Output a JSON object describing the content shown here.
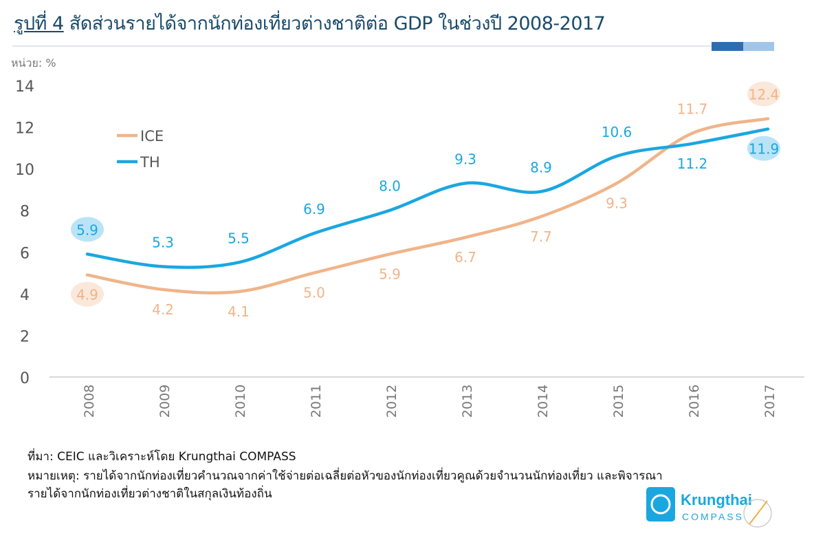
{
  "title_prefix": "รูปที่ 4",
  "title_text": "สัดส่วนรายได้จากนักท่องเที่ยวต่างชาติต่อ GDP ในช่วงปี 2008-2017",
  "unit_label": "หน่วย: %",
  "source": "ที่มา: CEIC และวิเคราะห์โดย Krungthai COMPASS",
  "note_line1": "หมายเหตุ: รายได้จากนักท่องเที่ยวคำนวณจากค่าใช้จ่ายต่อเฉลี่ยต่อหัวของนักท่องเที่ยวคูณด้วยจำนวนนักท่องเที่ยว และพิจารณา",
  "note_line2": "รายได้จากนักท่องเที่ยวต่างชาติในสกุลเงินท้องถิ่น",
  "logo": {
    "name": "Krungthai",
    "sub": "COMPASS"
  },
  "chart_data": {
    "type": "line",
    "title": "สัดส่วนรายได้จากนักท่องเที่ยวต่างชาติต่อ GDP ในช่วงปี 2008-2017",
    "xlabel": "",
    "ylabel": "หน่วย: %",
    "ylim": [
      0,
      14
    ],
    "yticks": [
      0,
      2,
      4,
      6,
      8,
      10,
      12,
      14
    ],
    "grid": false,
    "legend_position": "top-left",
    "categories": [
      "2008",
      "2009",
      "2010",
      "2011",
      "2012",
      "2013",
      "2014",
      "2015",
      "2016",
      "2017"
    ],
    "series": [
      {
        "name": "ICE",
        "color": "#f0b489",
        "values": [
          4.9,
          4.2,
          4.1,
          5.0,
          5.9,
          6.7,
          7.7,
          9.3,
          11.7,
          12.4
        ],
        "label_side": [
          "below",
          "below",
          "below",
          "below",
          "below",
          "below",
          "below",
          "below",
          "above",
          "above"
        ]
      },
      {
        "name": "TH",
        "color": "#1aa7e0",
        "values": [
          5.9,
          5.3,
          5.5,
          6.9,
          8.0,
          9.3,
          8.9,
          10.6,
          11.2,
          11.9
        ],
        "label_side": [
          "above",
          "above",
          "above",
          "above",
          "above",
          "above",
          "above",
          "above",
          "below",
          "below"
        ]
      }
    ],
    "highlighted_years": [
      "2008",
      "2017"
    ]
  }
}
